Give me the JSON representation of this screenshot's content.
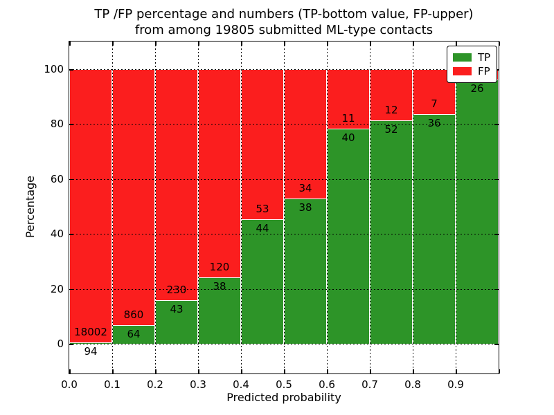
{
  "chart_data": {
    "type": "bar",
    "stacked": true,
    "title_lines": [
      "TP /FP percentage and numbers (TP-bottom value, FP-upper)",
      "from among 19805 submitted ML-type contacts"
    ],
    "xlabel": "Predicted probability",
    "ylabel": "Percentage",
    "xlim": [
      0.0,
      1.0
    ],
    "ylim": [
      -11,
      110
    ],
    "xticks": [
      "0.0",
      "0.1",
      "0.2",
      "0.3",
      "0.4",
      "0.5",
      "0.6",
      "0.7",
      "0.8",
      "0.9"
    ],
    "yticks": [
      0,
      20,
      40,
      60,
      80,
      100
    ],
    "grid": "dotted, horizontal at yticks and vertical at bin boundaries",
    "legend_position": "upper right",
    "series": [
      {
        "name": "TP",
        "color": "#2d9428",
        "position": "bottom"
      },
      {
        "name": "FP",
        "color": "#fb1e1e",
        "position": "top"
      }
    ],
    "total_contacts": 19805,
    "bins": [
      {
        "range": "0.0-0.1",
        "tp": 94,
        "fp": 18002,
        "tp_pct": 0.5
      },
      {
        "range": "0.1-0.2",
        "tp": 64,
        "fp": 860,
        "tp_pct": 6.9
      },
      {
        "range": "0.2-0.3",
        "tp": 43,
        "fp": 230,
        "tp_pct": 15.8
      },
      {
        "range": "0.3-0.4",
        "tp": 38,
        "fp": 120,
        "tp_pct": 24.1
      },
      {
        "range": "0.4-0.5",
        "tp": 44,
        "fp": 53,
        "tp_pct": 45.4
      },
      {
        "range": "0.5-0.6",
        "tp": 38,
        "fp": 34,
        "tp_pct": 52.8
      },
      {
        "range": "0.6-0.7",
        "tp": 40,
        "fp": 11,
        "tp_pct": 78.4
      },
      {
        "range": "0.7-0.8",
        "tp": 52,
        "fp": 12,
        "tp_pct": 81.3
      },
      {
        "range": "0.8-0.9",
        "tp": 36,
        "fp": 7,
        "tp_pct": 83.7
      },
      {
        "range": "0.9-1.0",
        "tp": 26,
        "fp": null,
        "tp_pct": 96.3
      }
    ]
  }
}
